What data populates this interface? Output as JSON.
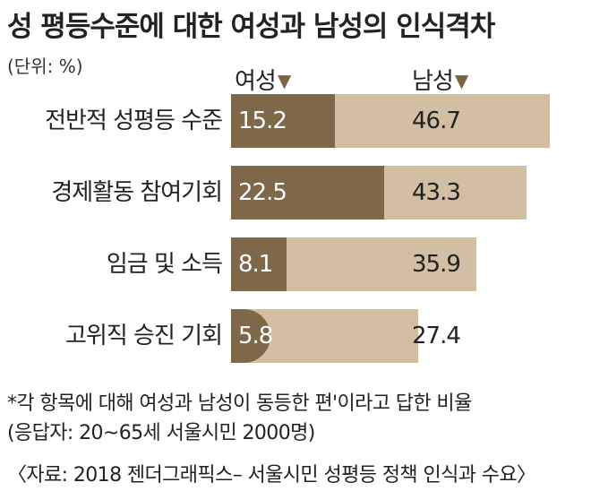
{
  "title": "성 평등수준에 대한 여성과 남성의 인식격차",
  "unit_label": "(단위: %)",
  "footnotes": {
    "note1": "*각 항목에 대해 여성과 남성이 동등한 편'이라고 답한 비율",
    "note2": "(응답자: 20~65세 서울시민 2000명)",
    "source": "〈자료: 2018 젠더그래픽스– 서울시민 성평등 정책 인식과 수요〉"
  },
  "colors": {
    "female": "#7e6849",
    "male": "#d1bea3"
  },
  "chart_data": {
    "type": "bar",
    "orientation": "horizontal",
    "layout": "overlapping",
    "title": "성 평등수준에 대한 여성과 남성의 인식격차",
    "unit": "(단위: %)",
    "xlim": [
      0,
      50
    ],
    "grid": false,
    "legend_position": "top",
    "categories": [
      "전반적 성평등 수준",
      "경제활동 참여기회",
      "임금 및 소득",
      "고위직 승진 기회"
    ],
    "series": [
      {
        "name": "여성",
        "marker": "▼",
        "color": "#7e6849",
        "values": [
          15.2,
          22.5,
          8.1,
          5.8
        ]
      },
      {
        "name": "남성",
        "marker": "▼",
        "color": "#d1bea3",
        "values": [
          46.7,
          43.3,
          35.9,
          27.4
        ]
      }
    ],
    "value_labels": {
      "female": [
        "15.2",
        "22.5",
        "8.1",
        "5.8"
      ],
      "male": [
        "46.7",
        "43.3",
        "35.9",
        "27.4"
      ]
    }
  }
}
